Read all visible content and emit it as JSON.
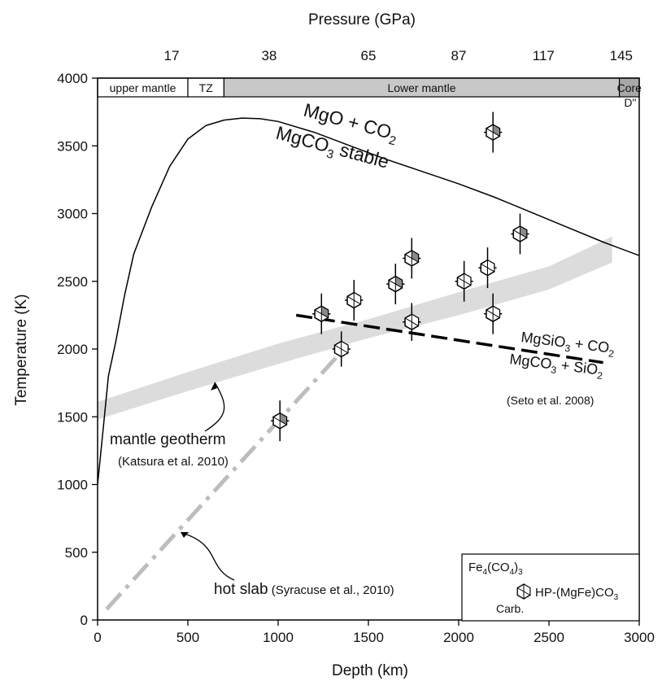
{
  "chart_data": {
    "type": "scatter",
    "title": "",
    "xlabel": "Depth (km)",
    "ylabel": "Temperature (K)",
    "top_axis_label": "Pressure (GPa)",
    "xlim": [
      0,
      3000
    ],
    "ylim": [
      0,
      4000
    ],
    "x_ticks": [
      0,
      500,
      1000,
      1500,
      2000,
      2500,
      3000
    ],
    "y_ticks": [
      0,
      500,
      1000,
      1500,
      2000,
      2500,
      3000,
      3500,
      4000
    ],
    "top_ticks": [
      {
        "depth": 410,
        "label": "17"
      },
      {
        "depth": 950,
        "label": "38"
      },
      {
        "depth": 1500,
        "label": "65"
      },
      {
        "depth": 2000,
        "label": "87"
      },
      {
        "depth": 2470,
        "label": "117"
      },
      {
        "depth": 2900,
        "label": "145"
      }
    ],
    "zones": [
      {
        "label": "upper mantle",
        "from": 0,
        "to": 500,
        "fill": "#ffffff"
      },
      {
        "label": "TZ",
        "from": 500,
        "to": 700,
        "fill": "#ffffff"
      },
      {
        "label": "Lower mantle",
        "from": 700,
        "to": 2890,
        "fill": "#c8c8c8"
      },
      {
        "label": "Core",
        "from": 2890,
        "to": 3000,
        "fill": "#a8a8a8"
      }
    ],
    "d_double_prime_label": "D\"",
    "series": [
      {
        "kind": "decarbonation-curve",
        "color": "#000000",
        "points": [
          [
            0,
            1000
          ],
          [
            30,
            1400
          ],
          [
            60,
            1800
          ],
          [
            100,
            2050
          ],
          [
            150,
            2400
          ],
          [
            200,
            2700
          ],
          [
            300,
            3050
          ],
          [
            400,
            3350
          ],
          [
            500,
            3550
          ],
          [
            600,
            3650
          ],
          [
            700,
            3690
          ],
          [
            800,
            3705
          ],
          [
            900,
            3700
          ],
          [
            1000,
            3680
          ],
          [
            1200,
            3600
          ],
          [
            1400,
            3500
          ],
          [
            1600,
            3400
          ],
          [
            1800,
            3310
          ],
          [
            2000,
            3220
          ],
          [
            2200,
            3120
          ],
          [
            2400,
            3010
          ],
          [
            2600,
            2900
          ],
          [
            2800,
            2790
          ],
          [
            3000,
            2690
          ]
        ]
      },
      {
        "kind": "mantle-geotherm-band",
        "color": "#dcdcdc",
        "upper": [
          [
            0,
            1610
          ],
          [
            500,
            1830
          ],
          [
            1000,
            2040
          ],
          [
            1500,
            2220
          ],
          [
            2000,
            2420
          ],
          [
            2500,
            2610
          ],
          [
            2850,
            2830
          ]
        ],
        "lower": [
          [
            0,
            1480
          ],
          [
            500,
            1690
          ],
          [
            1000,
            1890
          ],
          [
            1500,
            2080
          ],
          [
            2000,
            2250
          ],
          [
            2500,
            2440
          ],
          [
            2850,
            2640
          ]
        ]
      },
      {
        "kind": "hot-slab",
        "color": "#bdbdbd",
        "points": [
          [
            50,
            80
          ],
          [
            1330,
            1950
          ]
        ]
      },
      {
        "kind": "reaction-line",
        "color": "#000000",
        "points": [
          [
            1100,
            2250
          ],
          [
            2800,
            1900
          ]
        ]
      }
    ],
    "points": [
      {
        "x": 1010,
        "y": 1470,
        "yerr": 150,
        "xerr": 50,
        "shade": "dark"
      },
      {
        "x": 1240,
        "y": 2260,
        "yerr": 150,
        "xerr": 50,
        "shade": "dark"
      },
      {
        "x": 1350,
        "y": 2000,
        "yerr": 130,
        "xerr": 50,
        "shade": "light"
      },
      {
        "x": 1420,
        "y": 2360,
        "yerr": 150,
        "xerr": 50,
        "shade": "light"
      },
      {
        "x": 1650,
        "y": 2480,
        "yerr": 150,
        "xerr": 50,
        "shade": "dark"
      },
      {
        "x": 1740,
        "y": 2200,
        "yerr": 140,
        "xerr": 50,
        "shade": "light"
      },
      {
        "x": 1740,
        "y": 2670,
        "yerr": 150,
        "xerr": 50,
        "shade": "dark"
      },
      {
        "x": 2030,
        "y": 2500,
        "yerr": 150,
        "xerr": 50,
        "shade": "light"
      },
      {
        "x": 2160,
        "y": 2600,
        "yerr": 150,
        "xerr": 50,
        "shade": "light"
      },
      {
        "x": 2190,
        "y": 2260,
        "yerr": 150,
        "xerr": 50,
        "shade": "light"
      },
      {
        "x": 2190,
        "y": 3600,
        "yerr": 150,
        "xerr": 50,
        "shade": "dark"
      },
      {
        "x": 2340,
        "y": 2850,
        "yerr": 150,
        "xerr": 50,
        "shade": "dark"
      }
    ],
    "annotations": {
      "stability_line1": "MgO + CO",
      "stability_line1_sub": "2",
      "stability_line2": "MgCO",
      "stability_line2_sub": "3",
      "stability_line2_tail": " stable",
      "reaction_top": "MgSiO",
      "reaction_top_sub": "3",
      "reaction_top_mid": " + CO",
      "reaction_top_sub2": "2",
      "reaction_bottom": "MgCO",
      "reaction_bottom_sub": "3",
      "reaction_bottom_mid": " + SiO",
      "reaction_bottom_sub2": "2",
      "seto_ref": "(Seto et al. 2008)",
      "geotherm_label": "mantle geotherm",
      "geotherm_ref": "(Katsura et al. 2010)",
      "slab_label": "hot slab",
      "slab_ref": " (Syracuse et al., 2010)"
    },
    "legend": {
      "position": "bottom-right",
      "entry1_text": "Fe",
      "entry1_sub1": "4",
      "entry1_mid": "(CO",
      "entry1_sub2": "4",
      "entry1_tail": ")",
      "entry1_sub3": "3",
      "entry2_text": "HP-(MgFe)CO",
      "entry2_sub": "3",
      "entry3_text": "Carb."
    }
  }
}
